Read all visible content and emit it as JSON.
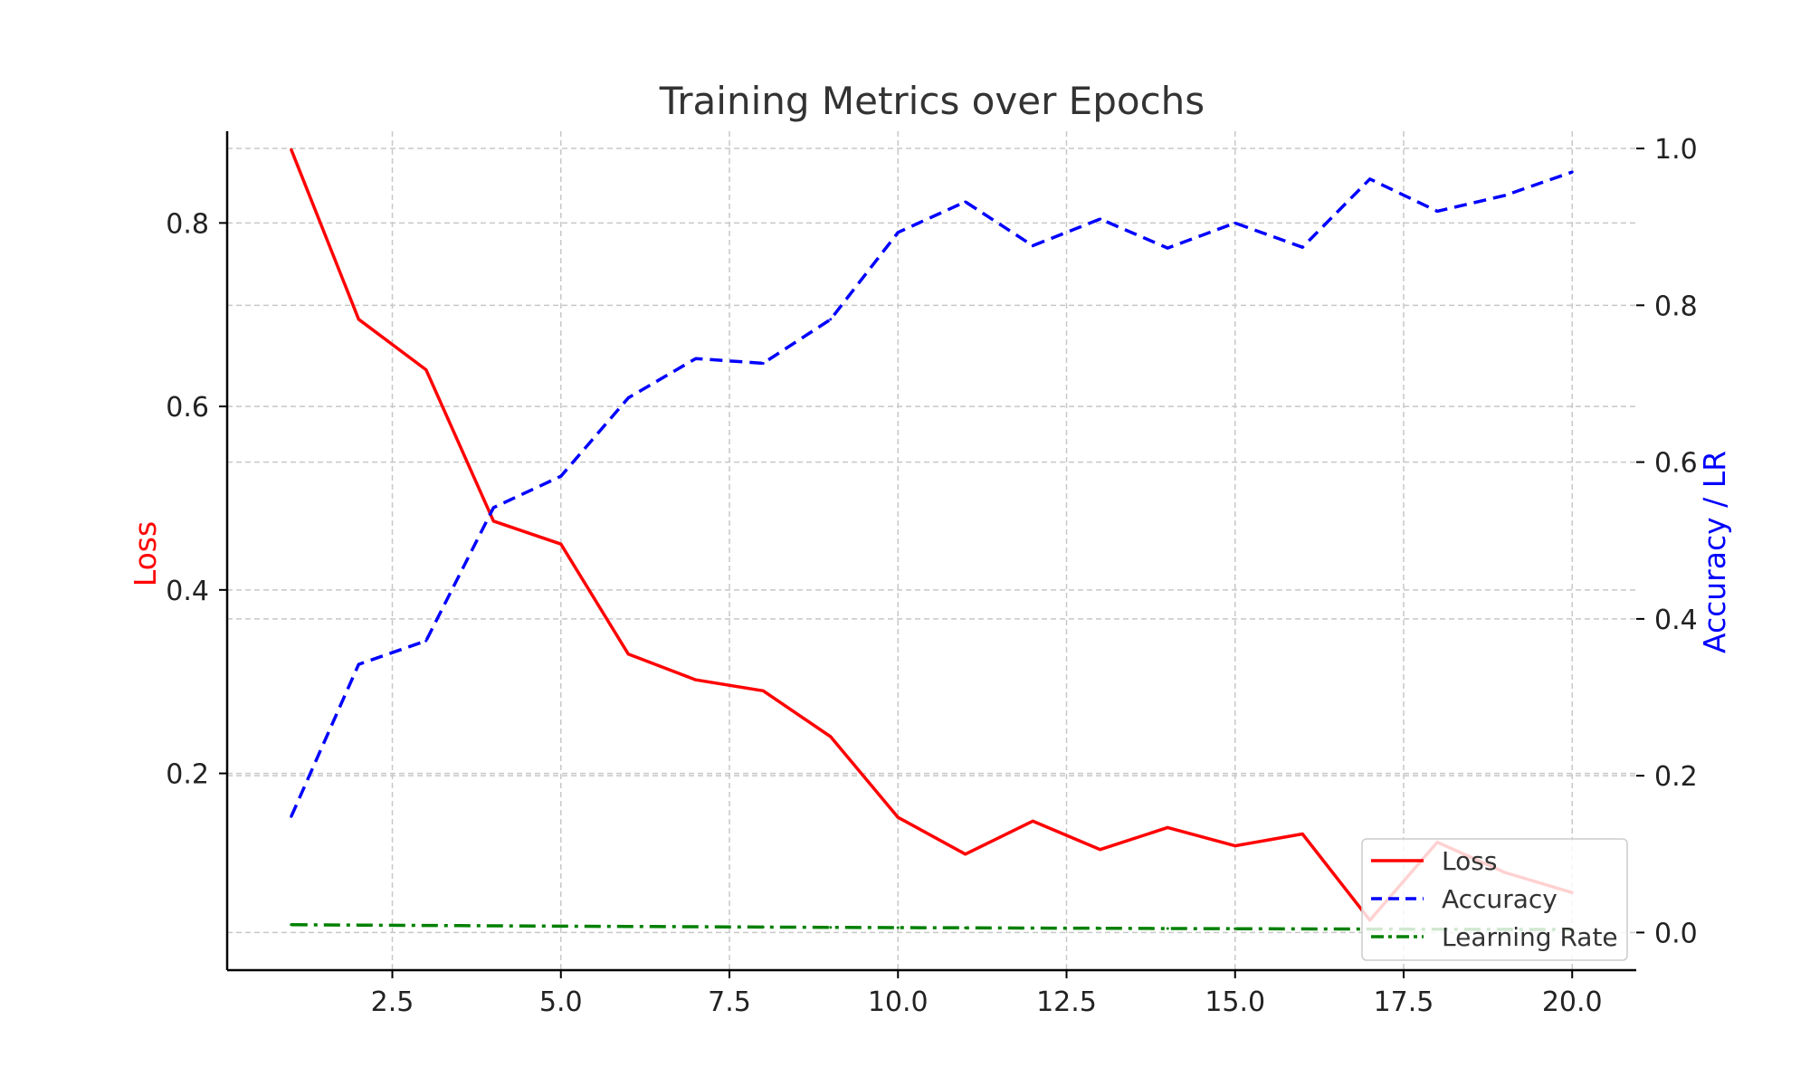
{
  "chart_data": {
    "type": "line",
    "title": "Training Metrics over Epochs",
    "xlabel": "",
    "y_left_label": "Loss",
    "y_right_label": "Accuracy / LR",
    "xlim": [
      0.05,
      20.95
    ],
    "y_left_lim": [
      -0.0145,
      0.9
    ],
    "y_right_lim": [
      -0.048,
      1.022
    ],
    "x_ticks": [
      "2.5",
      "5.0",
      "7.5",
      "10.0",
      "12.5",
      "15.0",
      "17.5",
      "20.0"
    ],
    "y_left_ticks": [
      "0.2",
      "0.4",
      "0.6",
      "0.8"
    ],
    "y_right_ticks": [
      "0.0",
      "0.2",
      "0.4",
      "0.6",
      "0.8",
      "1.0"
    ],
    "grid": true,
    "legend_position": "bottom-right",
    "x": [
      1,
      2,
      3,
      4,
      5,
      6,
      7,
      8,
      9,
      10,
      11,
      12,
      13,
      14,
      15,
      16,
      17,
      18,
      19,
      20
    ],
    "series": [
      {
        "name": "Loss",
        "axis": "left",
        "color": "#ff0000",
        "style": "solid",
        "values": [
          0.88,
          0.695,
          0.64,
          0.475,
          0.45,
          0.33,
          0.302,
          0.29,
          0.24,
          0.152,
          0.112,
          0.148,
          0.117,
          0.141,
          0.121,
          0.134,
          0.04,
          0.125,
          0.092,
          0.07
        ]
      },
      {
        "name": "Accuracy",
        "axis": "right",
        "color": "#0000ff",
        "style": "dashed",
        "values": [
          0.148,
          0.342,
          0.372,
          0.542,
          0.582,
          0.682,
          0.732,
          0.726,
          0.782,
          0.893,
          0.932,
          0.876,
          0.91,
          0.873,
          0.905,
          0.874,
          0.961,
          0.92,
          0.94,
          0.97
        ]
      },
      {
        "name": "Learning Rate",
        "axis": "right",
        "color": "#008000",
        "style": "dashdot",
        "values": [
          0.01,
          0.0095,
          0.009,
          0.0086,
          0.0081,
          0.0077,
          0.0074,
          0.007,
          0.0066,
          0.0063,
          0.006,
          0.0057,
          0.0054,
          0.0051,
          0.0049,
          0.0046,
          0.0044,
          0.0042,
          0.004,
          0.0038
        ]
      }
    ]
  }
}
